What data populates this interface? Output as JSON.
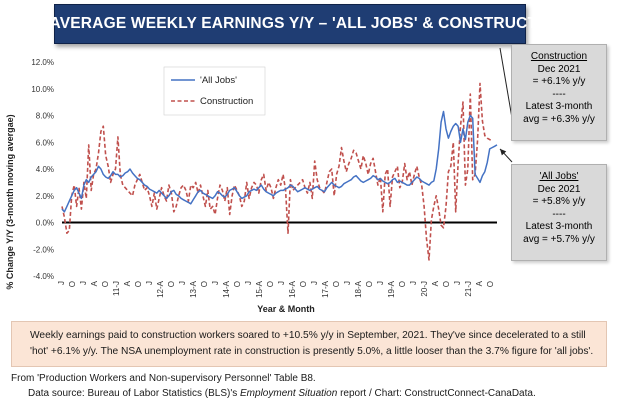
{
  "title": "U.S. AVERAGE WEEKLY EARNINGS Y/Y – 'ALL JOBS' & CONSTRUCTION",
  "callouts": {
    "construction": {
      "head": "Construction",
      "line1": "Dec 2021",
      "line2": "= +6.1% y/y",
      "sep": "----",
      "line3": "Latest 3-month",
      "line4": "avg = +6.3% y/y"
    },
    "alljobs": {
      "head": "'All Jobs'",
      "line1": "Dec 2021",
      "line2": "= +5.8% y/y",
      "sep": "----",
      "line3": "Latest 3-month",
      "line4": "avg = +5.7% y/y"
    }
  },
  "note": "Weekly earnings paid to construction workers soared to +10.5% y/y in September, 2021. They've since decelerated to a still 'hot' +6.1% y/y. The NSA unemployment rate in construction is presently 5.0%, a little looser than the 3.7% figure for 'all jobs'.",
  "source": {
    "line1": "From 'Production Workers and Non-supervisory Personnel' Table B8.",
    "line2_pre": "Data source: Bureau of Labor Statistics (BLS)'s ",
    "line2_em": "Employment Situation",
    "line2_post": " report / Chart: ConstructConnect-CanaData."
  },
  "colors": {
    "all_jobs": "#4472c4",
    "construction": "#c0504d",
    "banner": "#1f3d73",
    "note_bg": "#fbe5d6",
    "callout_bg": "#d9d9d9"
  },
  "chart_data": {
    "type": "line",
    "title": "U.S. AVERAGE WEEKLY EARNINGS Y/Y – 'ALL JOBS' & CONSTRUCTION",
    "xlabel": "Year & Month",
    "ylabel": "% Change Y/Y (3-month moving avergae)",
    "ylim": [
      -4,
      12
    ],
    "yticks": [
      "12.0%",
      "10.0%",
      "8.0%",
      "6.0%",
      "4.0%",
      "2.0%",
      "0.0%",
      "-2.0%",
      "-4.0%"
    ],
    "grid": false,
    "legend_position": "top-left",
    "x_start": "2010-01",
    "x_end": "2021-12",
    "x_tick_labels": [
      "J",
      "O",
      "J",
      "A",
      "O",
      "11-J",
      "A",
      "O",
      "J",
      "12-A",
      "O",
      "J",
      "13-A",
      "O",
      "J",
      "14-A",
      "O",
      "J",
      "15-A",
      "O",
      "J",
      "16-A",
      "O",
      "J",
      "17-A",
      "O",
      "J",
      "18-A",
      "O",
      "J",
      "19-A",
      "O",
      "J",
      "20-J",
      "A",
      "O",
      "J",
      "21-J",
      "A",
      "O"
    ],
    "series": [
      {
        "name": "'All Jobs'",
        "style": "solid",
        "values": [
          1.0,
          0.8,
          1.2,
          1.6,
          2.0,
          2.4,
          2.6,
          2.2,
          1.8,
          2.8,
          3.2,
          3.0,
          3.4,
          3.6,
          3.8,
          4.2,
          4.0,
          3.6,
          3.4,
          3.3,
          3.5,
          3.8,
          3.6,
          3.6,
          3.4,
          3.5,
          3.7,
          3.8,
          4.0,
          3.7,
          3.5,
          3.3,
          3.2,
          3.0,
          2.8,
          2.7,
          2.5,
          2.4,
          2.3,
          2.2,
          2.4,
          2.2,
          2.0,
          1.8,
          2.0,
          2.3,
          2.4,
          2.1,
          2.0,
          1.8,
          1.7,
          1.6,
          1.5,
          1.4,
          1.7,
          2.0,
          2.3,
          2.4,
          2.2,
          2.1,
          2.0,
          1.9,
          1.8,
          2.0,
          2.3,
          2.2,
          2.0,
          1.9,
          2.1,
          2.4,
          2.5,
          2.6,
          2.3,
          2.0,
          1.8,
          1.9,
          2.0,
          2.3,
          2.4,
          2.5,
          2.4,
          2.6,
          2.8,
          2.5,
          2.3,
          2.2,
          2.1,
          2.0,
          2.2,
          2.3,
          2.4,
          2.4,
          2.5,
          2.6,
          2.8,
          2.7,
          2.5,
          2.3,
          2.4,
          2.5,
          2.6,
          2.5,
          2.4,
          2.5,
          2.6,
          2.7,
          2.5,
          2.4,
          2.3,
          2.6,
          2.8,
          3.0,
          2.8,
          2.7,
          2.6,
          2.7,
          2.9,
          3.0,
          3.1,
          3.2,
          3.4,
          3.5,
          3.3,
          3.1,
          3.0,
          3.1,
          3.2,
          3.3,
          3.5,
          3.4,
          3.2,
          3.3,
          3.1,
          3.0,
          2.9,
          3.0,
          3.2,
          3.3,
          3.0,
          3.1,
          3.0,
          2.9,
          2.8,
          2.8,
          3.0,
          3.2,
          3.4,
          3.3,
          3.1,
          3.0,
          2.9,
          2.8,
          3.0,
          3.1,
          4.0,
          5.5,
          7.5,
          8.3,
          7.0,
          6.3,
          6.8,
          7.2,
          7.4,
          7.2,
          6.0,
          7.0,
          6.2,
          7.5,
          8.0,
          7.8,
          3.6,
          3.3,
          3.0,
          3.5,
          3.8,
          4.5,
          5.5,
          5.6,
          5.7,
          5.8
        ]
      },
      {
        "name": "Construction",
        "style": "dashed",
        "values": [
          1.2,
          0.4,
          -0.8,
          -0.6,
          2.0,
          2.8,
          1.2,
          2.6,
          1.0,
          3.0,
          1.8,
          5.8,
          2.4,
          3.6,
          4.0,
          5.2,
          6.8,
          7.2,
          5.0,
          4.2,
          3.0,
          3.6,
          4.0,
          6.4,
          3.6,
          2.8,
          2.6,
          2.4,
          2.2,
          2.0,
          2.8,
          3.2,
          3.6,
          3.0,
          2.4,
          2.6,
          2.0,
          1.2,
          2.2,
          1.0,
          1.8,
          2.6,
          2.0,
          1.6,
          2.8,
          2.2,
          0.8,
          1.2,
          2.0,
          2.6,
          2.8,
          2.4,
          1.6,
          2.8,
          2.6,
          3.0,
          2.2,
          2.8,
          2.0,
          1.2,
          2.4,
          1.0,
          1.2,
          0.6,
          1.8,
          2.8,
          2.4,
          1.6,
          2.6,
          0.6,
          2.0,
          2.8,
          2.4,
          2.0,
          1.2,
          1.6,
          3.0,
          1.8,
          2.6,
          3.0,
          2.8,
          2.2,
          3.2,
          3.6,
          2.4,
          3.0,
          2.6,
          1.8,
          2.6,
          3.2,
          2.8,
          3.6,
          2.4,
          -0.8,
          3.2,
          2.4,
          2.6,
          2.8,
          3.0,
          3.2,
          2.6,
          2.2,
          3.0,
          1.8,
          4.6,
          3.2,
          2.6,
          2.4,
          2.2,
          3.0,
          3.8,
          4.0,
          2.0,
          3.6,
          4.2,
          5.6,
          4.6,
          3.8,
          4.4,
          4.8,
          5.4,
          5.2,
          4.6,
          4.0,
          5.0,
          4.4,
          3.6,
          4.4,
          4.8,
          3.8,
          2.8,
          3.4,
          0.8,
          3.6,
          4.0,
          1.2,
          3.4,
          3.8,
          4.2,
          2.6,
          3.0,
          4.4,
          3.2,
          3.8,
          2.8,
          3.6,
          4.2,
          3.4,
          2.8,
          1.2,
          -1.2,
          -2.8,
          0.2,
          1.2,
          2.0,
          1.0,
          -0.2,
          -0.4,
          1.2,
          3.8,
          4.2,
          6.0,
          0.8,
          4.4,
          7.2,
          9.0,
          2.8,
          4.0,
          9.6,
          3.2,
          3.6,
          6.2,
          10.4,
          7.6,
          6.5,
          6.3,
          6.2,
          6.1
        ]
      }
    ]
  }
}
